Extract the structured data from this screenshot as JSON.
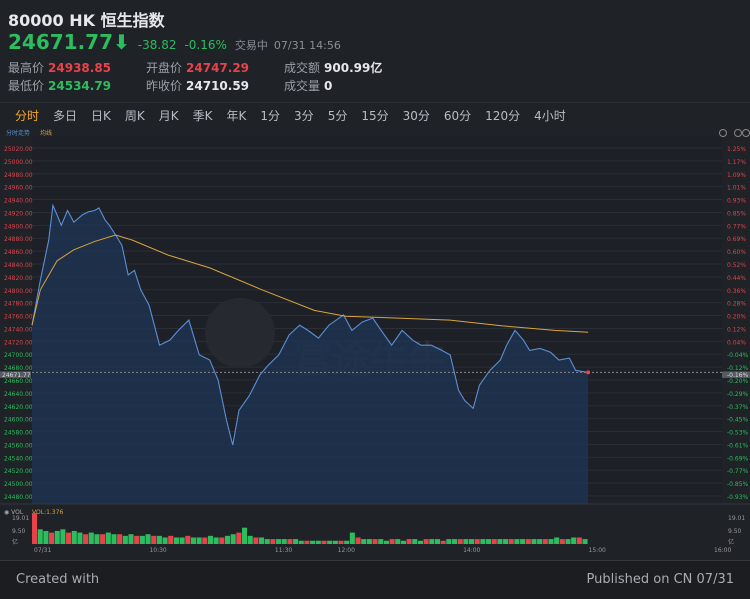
{
  "header": {
    "title": "80000  HK 恒生指数",
    "price": "24671.77",
    "arrow": "⬇",
    "change": "-38.82",
    "change_pct": "-0.16%",
    "status": "交易中",
    "datetime": "07/31 14:56",
    "stats": [
      {
        "label": "最高价",
        "value": "24938.85",
        "color": "red"
      },
      {
        "label": "开盘价",
        "value": "24747.29",
        "color": "red"
      },
      {
        "label": "成交额",
        "value": "900.99亿",
        "color": "wht"
      },
      {
        "label": "最低价",
        "value": "24534.79",
        "color": "grn"
      },
      {
        "label": "昨收价",
        "value": "24710.59",
        "color": "wht"
      },
      {
        "label": "成交量",
        "value": "0",
        "color": "wht"
      }
    ]
  },
  "tabs": [
    "分时",
    "多日",
    "日K",
    "周K",
    "月K",
    "季K",
    "年K",
    "1分",
    "3分",
    "5分",
    "15分",
    "30分",
    "60分",
    "120分",
    "4小时"
  ],
  "active_tab": "分时",
  "colors": {
    "up": "#e8424b",
    "down": "#2dbd5f",
    "price_line": "#5b8fd6",
    "avg_line": "#d9a441",
    "accent": "#f5a623"
  },
  "chart": {
    "legend": [
      "分时走势",
      "均线"
    ],
    "watermark": "富途牛牛",
    "current_label": "24671.77",
    "current_pct": "-0.16%",
    "y_labels": [
      "25020.00",
      "25000.00",
      "24980.00",
      "24960.00",
      "24940.00",
      "24920.00",
      "24900.00",
      "24880.00",
      "24860.00",
      "24840.00",
      "24820.00",
      "24800.00",
      "24780.00",
      "24760.00",
      "24740.00",
      "24720.00",
      "24700.00",
      "24680.00",
      "24660.00",
      "24640.00",
      "24620.00",
      "24600.00",
      "24580.00",
      "24560.00",
      "24540.00",
      "24520.00",
      "24500.00",
      "24480.00"
    ],
    "pct_labels": [
      "1.25%",
      "1.17%",
      "1.09%",
      "1.01%",
      "0.93%",
      "0.85%",
      "0.77%",
      "0.69%",
      "0.60%",
      "0.52%",
      "0.44%",
      "0.36%",
      "0.28%",
      "0.20%",
      "0.12%",
      "0.04%",
      "-0.04%",
      "-0.12%",
      "-0.20%",
      "-0.29%",
      "-0.37%",
      "-0.45%",
      "-0.53%",
      "-0.61%",
      "-0.69%",
      "-0.77%",
      "-0.85%",
      "-0.93%"
    ],
    "ylim": [
      24480,
      25020
    ],
    "x_labels": [
      "07/31",
      "10:30",
      "11:30",
      "12:00",
      "14:00",
      "15:00",
      "16:00"
    ],
    "price": [
      [
        "09:30",
        24745
      ],
      [
        "09:34",
        24815
      ],
      [
        "09:38",
        24877
      ],
      [
        "09:40",
        24931
      ],
      [
        "09:42",
        24916
      ],
      [
        "09:44",
        24900
      ],
      [
        "09:47",
        24923
      ],
      [
        "09:50",
        24905
      ],
      [
        "09:54",
        24916
      ],
      [
        "09:57",
        24921
      ],
      [
        "10:00",
        24923
      ],
      [
        "10:02",
        24927
      ],
      [
        "10:05",
        24908
      ],
      [
        "10:07",
        24900
      ],
      [
        "10:10",
        24885
      ],
      [
        "10:13",
        24869
      ],
      [
        "10:16",
        24823
      ],
      [
        "10:19",
        24830
      ],
      [
        "10:22",
        24800
      ],
      [
        "10:26",
        24776
      ],
      [
        "10:31",
        24714
      ],
      [
        "10:36",
        24722
      ],
      [
        "10:40",
        24737
      ],
      [
        "10:45",
        24753
      ],
      [
        "10:50",
        24699
      ],
      [
        "10:55",
        24691
      ],
      [
        "10:59",
        24660
      ],
      [
        "11:03",
        24598
      ],
      [
        "11:06",
        24559
      ],
      [
        "11:09",
        24613
      ],
      [
        "11:14",
        24636
      ],
      [
        "11:19",
        24668
      ],
      [
        "11:23",
        24683
      ],
      [
        "11:28",
        24699
      ],
      [
        "11:33",
        24730
      ],
      [
        "11:38",
        24745
      ],
      [
        "11:42",
        24737
      ],
      [
        "11:47",
        24725
      ],
      [
        "11:52",
        24745
      ],
      [
        "11:59",
        24761
      ],
      [
        "13:03",
        24737
      ],
      [
        "13:08",
        24750
      ],
      [
        "13:13",
        24756
      ],
      [
        "13:17",
        24737
      ],
      [
        "13:22",
        24714
      ],
      [
        "13:27",
        24737
      ],
      [
        "13:32",
        24722
      ],
      [
        "13:36",
        24714
      ],
      [
        "13:41",
        24714
      ],
      [
        "13:46",
        24706
      ],
      [
        "13:50",
        24699
      ],
      [
        "13:54",
        24644
      ],
      [
        "13:57",
        24628
      ],
      [
        "14:01",
        24616
      ],
      [
        "14:04",
        24652
      ],
      [
        "14:09",
        24675
      ],
      [
        "14:14",
        24691
      ],
      [
        "14:17",
        24714
      ],
      [
        "14:21",
        24737
      ],
      [
        "14:25",
        24722
      ],
      [
        "14:28",
        24706
      ],
      [
        "14:33",
        24709
      ],
      [
        "14:38",
        24703
      ],
      [
        "14:42",
        24691
      ],
      [
        "14:47",
        24694
      ],
      [
        "14:50",
        24675
      ],
      [
        "14:56",
        24671.77
      ]
    ],
    "avg": [
      [
        "09:30",
        24745
      ],
      [
        "09:34",
        24800
      ],
      [
        "09:42",
        24845
      ],
      [
        "09:50",
        24862
      ],
      [
        "10:00",
        24875
      ],
      [
        "10:10",
        24885
      ],
      [
        "10:18",
        24877
      ],
      [
        "10:35",
        24854
      ],
      [
        "10:55",
        24834
      ],
      [
        "11:20",
        24800
      ],
      [
        "11:45",
        24768
      ],
      [
        "13:00",
        24759
      ],
      [
        "13:25",
        24756
      ],
      [
        "13:50",
        24753
      ],
      [
        "14:15",
        24744
      ],
      [
        "14:40",
        24737
      ],
      [
        "14:56",
        24734
      ]
    ]
  },
  "volume": {
    "label": "VOL",
    "indicator": "VOL:1.376",
    "y_labels": [
      "19.01",
      "9.50",
      "亿"
    ],
    "values": [
      19,
      9,
      8,
      7,
      8,
      9,
      7,
      8,
      7,
      6,
      7,
      6,
      6,
      7,
      6,
      6,
      5,
      6,
      5,
      5,
      6,
      5,
      5,
      4,
      5,
      4,
      4,
      5,
      4,
      4,
      4,
      5,
      4,
      4,
      5,
      6,
      7,
      10,
      5,
      4,
      4,
      3,
      3,
      3,
      3,
      3,
      3,
      2,
      2,
      2,
      2,
      2,
      2,
      2,
      2,
      2,
      7,
      4,
      3,
      3,
      3,
      3,
      2,
      3,
      3,
      2,
      3,
      3,
      2,
      3,
      3,
      3,
      2,
      3,
      3,
      3,
      3,
      3,
      3,
      3,
      3,
      3,
      3,
      3,
      3,
      3,
      3,
      3,
      3,
      3,
      3,
      3,
      4,
      3,
      3,
      4,
      4,
      3
    ]
  },
  "footer": {
    "created": "Created with",
    "published": "Published on CN 07/31"
  }
}
